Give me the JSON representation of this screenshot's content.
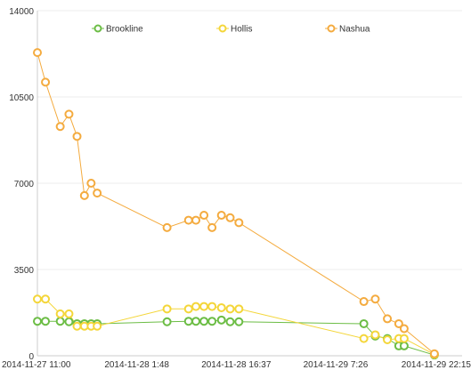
{
  "chart_data": {
    "type": "line",
    "title": "",
    "xlabel": "",
    "ylabel": "",
    "ylim": [
      0,
      14000
    ],
    "y_ticks": [
      "0",
      "3500",
      "7000",
      "10500",
      "14000"
    ],
    "y_tick_values": [
      0,
      3500,
      7000,
      10500,
      14000
    ],
    "x_ticks": [
      "2014-11-27 11:00",
      "2014-11-28 1:48",
      "2014-11-28 16:37",
      "2014-11-29 7:26",
      "2014-11-29 22:15"
    ],
    "x_tick_values": [
      0,
      14.8,
      29.6,
      44.4,
      59.25
    ],
    "x_unit": "hours since 2014-11-27 11:00",
    "grid": true,
    "legend_position": "top",
    "series": [
      {
        "name": "Brookline",
        "color": "#6cbd45",
        "points": [
          [
            0.0,
            1400
          ],
          [
            1.2,
            1400
          ],
          [
            3.4,
            1400
          ],
          [
            4.7,
            1380
          ],
          [
            5.9,
            1300
          ],
          [
            7.0,
            1300
          ],
          [
            8.0,
            1300
          ],
          [
            8.9,
            1300
          ],
          [
            19.3,
            1380
          ],
          [
            22.5,
            1400
          ],
          [
            23.6,
            1400
          ],
          [
            24.8,
            1400
          ],
          [
            26.0,
            1400
          ],
          [
            27.4,
            1450
          ],
          [
            28.7,
            1380
          ],
          [
            30.0,
            1380
          ],
          [
            48.6,
            1300
          ],
          [
            50.3,
            800
          ],
          [
            52.1,
            700
          ],
          [
            53.8,
            400
          ],
          [
            54.6,
            400
          ],
          [
            59.1,
            30
          ]
        ]
      },
      {
        "name": "Hollis",
        "color": "#f4d63a",
        "points": [
          [
            0.0,
            2300
          ],
          [
            1.2,
            2300
          ],
          [
            3.4,
            1700
          ],
          [
            4.7,
            1700
          ],
          [
            5.9,
            1200
          ],
          [
            7.0,
            1200
          ],
          [
            8.0,
            1200
          ],
          [
            8.9,
            1200
          ],
          [
            19.3,
            1900
          ],
          [
            22.5,
            1900
          ],
          [
            23.6,
            2000
          ],
          [
            24.8,
            2000
          ],
          [
            26.0,
            2000
          ],
          [
            27.4,
            1950
          ],
          [
            28.7,
            1900
          ],
          [
            30.0,
            1900
          ],
          [
            48.6,
            700
          ],
          [
            50.3,
            850
          ],
          [
            52.1,
            650
          ],
          [
            53.8,
            700
          ],
          [
            54.6,
            700
          ],
          [
            59.1,
            50
          ]
        ]
      },
      {
        "name": "Nashua",
        "color": "#f4ab3f",
        "points": [
          [
            0.0,
            12300
          ],
          [
            1.2,
            11100
          ],
          [
            3.4,
            9300
          ],
          [
            4.7,
            9800
          ],
          [
            5.9,
            8900
          ],
          [
            7.0,
            6500
          ],
          [
            8.0,
            7000
          ],
          [
            8.9,
            6600
          ],
          [
            19.3,
            5200
          ],
          [
            22.5,
            5500
          ],
          [
            23.6,
            5500
          ],
          [
            24.8,
            5700
          ],
          [
            26.0,
            5200
          ],
          [
            27.4,
            5700
          ],
          [
            28.7,
            5600
          ],
          [
            30.0,
            5400
          ],
          [
            48.6,
            2200
          ],
          [
            50.3,
            2300
          ],
          [
            52.1,
            1500
          ],
          [
            53.8,
            1300
          ],
          [
            54.6,
            1100
          ],
          [
            59.1,
            80
          ]
        ]
      }
    ]
  }
}
